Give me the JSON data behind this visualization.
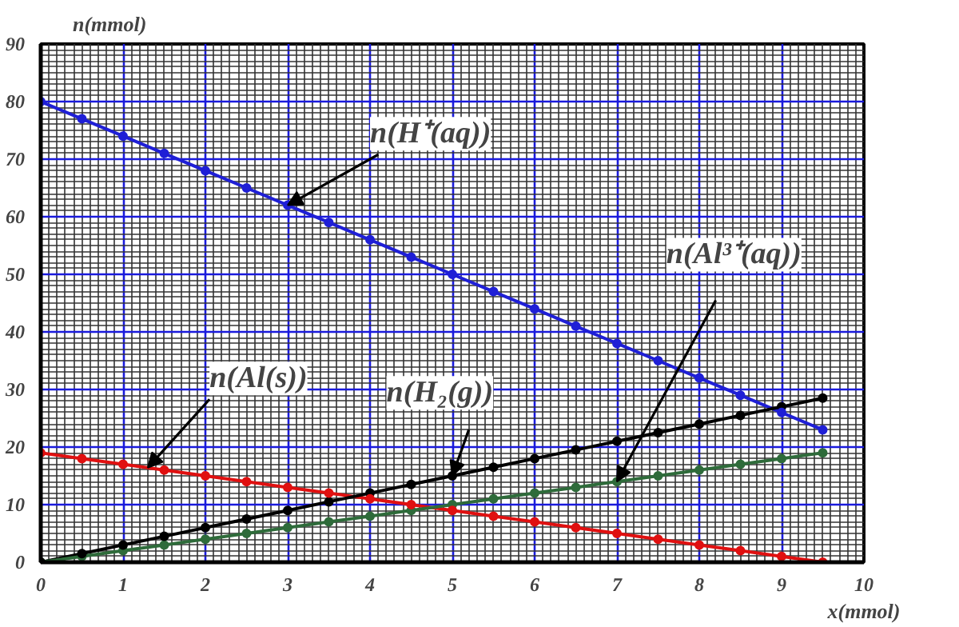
{
  "chart_data": {
    "type": "line",
    "xlabel": "x(mmol)",
    "ylabel": "n(mmol)",
    "x": [
      0,
      0.5,
      1,
      1.5,
      2,
      2.5,
      3,
      3.5,
      4,
      4.5,
      5,
      5.5,
      6,
      6.5,
      7,
      7.5,
      8,
      8.5,
      9,
      9.5
    ],
    "series": [
      {
        "color": "#1f1fd6",
        "values": [
          80,
          77,
          74,
          71,
          68,
          65,
          62,
          59,
          56,
          53,
          50,
          47,
          44,
          41,
          38,
          35,
          32,
          29,
          26,
          23
        ]
      },
      {
        "color": "#e01010",
        "values": [
          19,
          18,
          17,
          16,
          15,
          14,
          13,
          12,
          11,
          10,
          9,
          8,
          7,
          6,
          5,
          4,
          3,
          2,
          1,
          0
        ]
      },
      {
        "color": "#000000",
        "values": [
          0,
          1.5,
          3,
          4.5,
          6,
          7.5,
          9,
          10.5,
          12,
          13.5,
          15,
          16.5,
          18,
          19.5,
          21,
          22.5,
          24,
          25.5,
          27,
          28.5
        ]
      },
      {
        "color": "#2e6b3a",
        "values": [
          0,
          1,
          2,
          3,
          4,
          5,
          6,
          7,
          8,
          9,
          10,
          11,
          12,
          13,
          14,
          15,
          16,
          17,
          18,
          19
        ]
      }
    ],
    "annotations": [
      {
        "text": "n(H⁺(aq))",
        "x": 3,
        "y": 62
      },
      {
        "text": "n(Al³⁺(aq))",
        "x": 7,
        "y": 14
      },
      {
        "text": "n(Al(s))",
        "x": 1.3,
        "y": 16.4
      },
      {
        "text": "n(H₂(g))",
        "x": 5,
        "y": 15
      }
    ],
    "xlim": [
      0,
      10
    ],
    "ylim": [
      0,
      90
    ],
    "xticks": [
      0,
      1,
      2,
      3,
      4,
      5,
      6,
      7,
      8,
      9,
      10
    ],
    "yticks": [
      0,
      10,
      20,
      30,
      40,
      50,
      60,
      70,
      80,
      90
    ],
    "grid": true,
    "marker": "circle",
    "line_style": "solid"
  }
}
